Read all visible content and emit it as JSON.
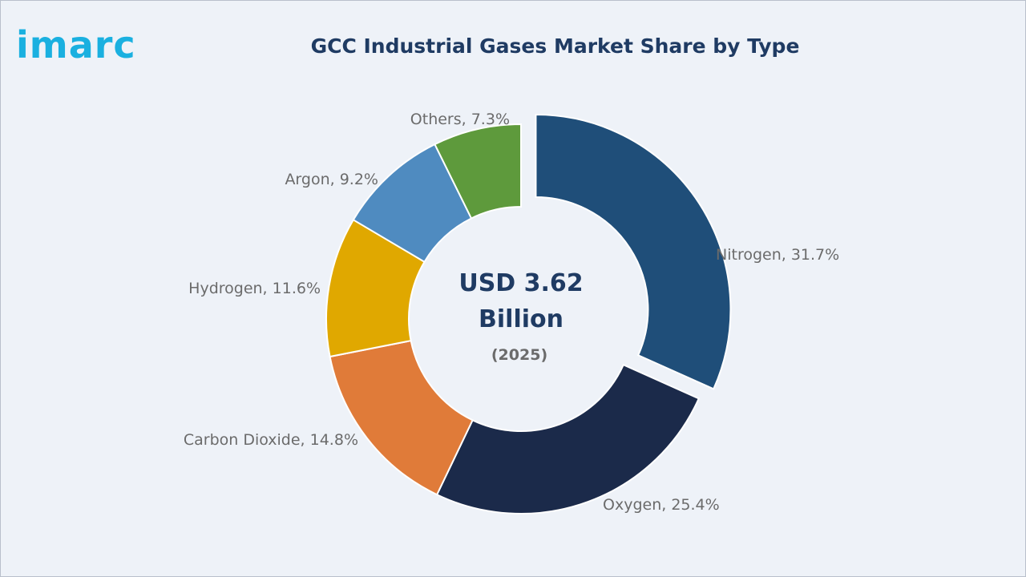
{
  "brand": {
    "logo_text": "imarc",
    "logo_color": "#1ab0e0"
  },
  "chart_data": {
    "type": "pie",
    "title": "GCC Industrial Gases Market Share by Type",
    "center_label": {
      "line1": "USD 3.62",
      "line2": "Billion",
      "line3": "(2025)"
    },
    "unit": "%",
    "categories": [
      "Nitrogen",
      "Oxygen",
      "Carbon Dioxide",
      "Hydrogen",
      "Argon",
      "Others"
    ],
    "values": [
      31.7,
      25.4,
      14.8,
      11.6,
      9.2,
      7.3
    ],
    "labels": [
      "Nitrogen, 31.7%",
      "Oxygen, 25.4%",
      "Carbon Dioxide, 14.8%",
      "Hydrogen, 11.6%",
      "Argon, 9.2%",
      "Others, 7.3%"
    ],
    "colors": [
      "#1f4e79",
      "#1b2a4a",
      "#e07b39",
      "#e0a800",
      "#4f8bc0",
      "#5e9a3c"
    ],
    "exploded_slice": "Nitrogen",
    "legend": "none"
  }
}
